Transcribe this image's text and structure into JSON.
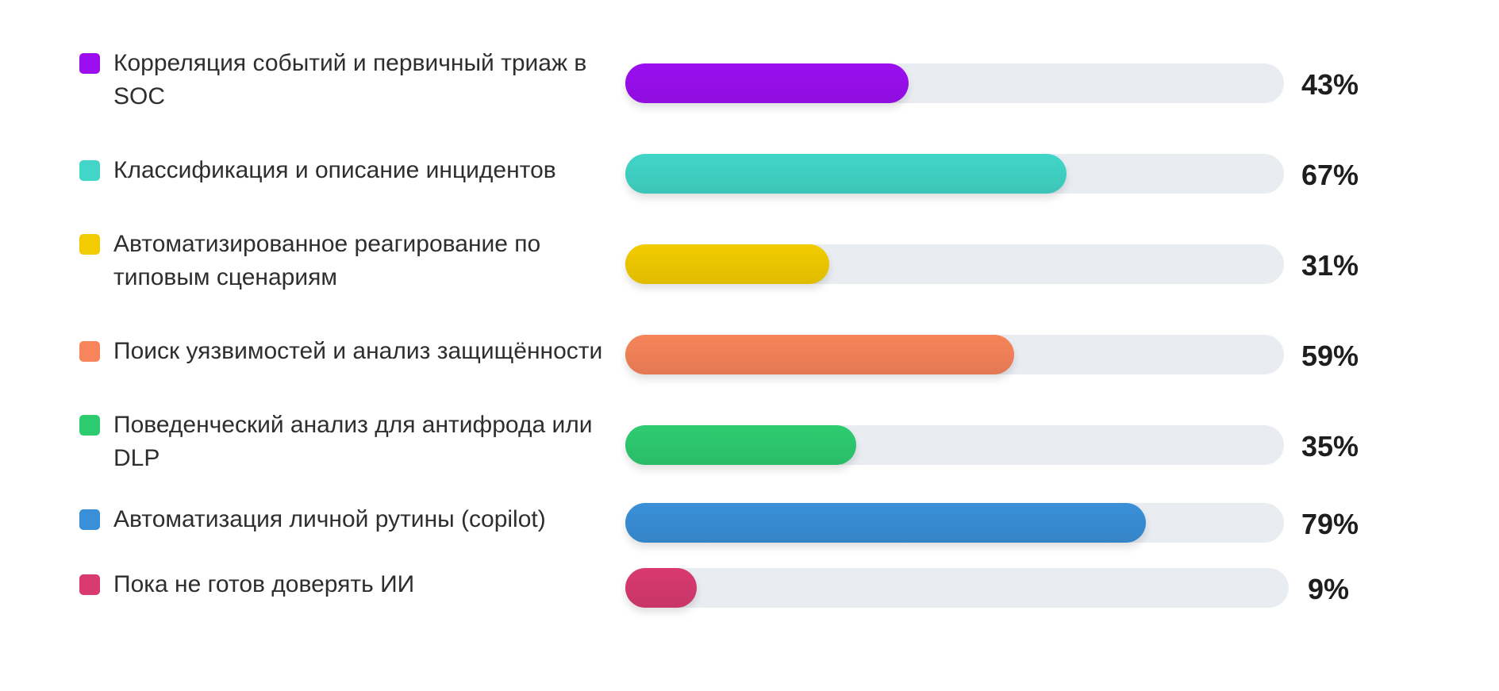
{
  "chart_data": {
    "type": "bar",
    "orientation": "horizontal",
    "xlim": [
      0,
      100
    ],
    "unit": "%",
    "categories": [
      "Корреляция событий и первичный триаж в SOC",
      "Классификация и описание инцидентов",
      "Автоматизированное реагирование по типовым сценариям",
      "Поиск уязвимостей и анализ защищённости",
      "Поведенческий анализ для антифрода или DLP",
      "Автоматизация личной рутины (copilot)",
      "Пока не готов доверять ИИ"
    ],
    "values": [
      43,
      67,
      31,
      59,
      35,
      79,
      9
    ],
    "value_labels": [
      "43%",
      "67%",
      "31%",
      "59%",
      "35%",
      "79%",
      "9%"
    ],
    "colors": [
      "#9b0ef0",
      "#41d6c8",
      "#f2cc00",
      "#f7845a",
      "#2ecc71",
      "#3a90d8",
      "#d93a70"
    ],
    "track_color": "#e9edf2",
    "legend": "left"
  }
}
